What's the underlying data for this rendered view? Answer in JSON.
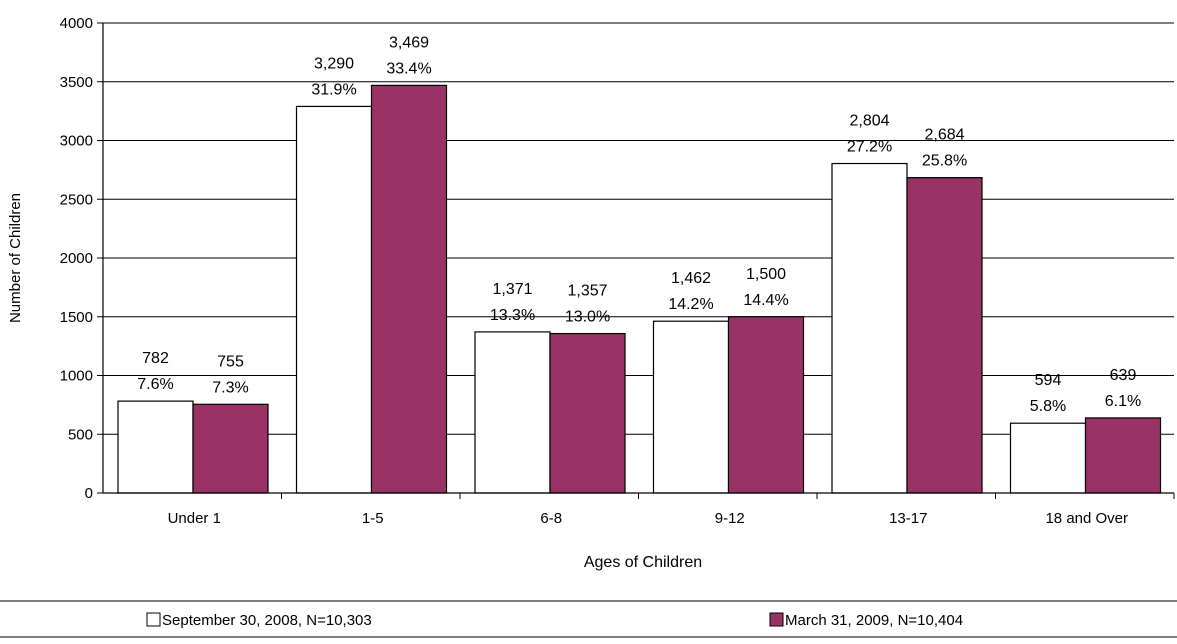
{
  "chart_data": {
    "type": "bar",
    "title": "",
    "xlabel": "Ages of Children",
    "ylabel": "Number of Children",
    "ylim": [
      0,
      4000
    ],
    "yticks": [
      0,
      500,
      1000,
      1500,
      2000,
      2500,
      3000,
      3500,
      4000
    ],
    "ytick_labels": [
      "0",
      "500",
      "1000",
      "1500",
      "2000",
      "2500",
      "3000",
      "3500",
      "4000"
    ],
    "grid": true,
    "legend_position": "bottom",
    "categories": [
      "Under 1",
      "1-5",
      "6-8",
      "9-12",
      "13-17",
      "18 and Over"
    ],
    "series": [
      {
        "name": "September 30, 2008, N=10,303",
        "color": "#ffffff",
        "values": [
          782,
          3290,
          1371,
          1462,
          2804,
          594
        ],
        "value_labels": [
          "782",
          "3,290",
          "1,371",
          "1,462",
          "2,804",
          "594"
        ],
        "percent_labels": [
          "7.6%",
          "31.9%",
          "13.3%",
          "14.2%",
          "27.2%",
          "5.8%"
        ]
      },
      {
        "name": "March 31, 2009, N=10,404",
        "color": "#993366",
        "values": [
          755,
          3469,
          1357,
          1500,
          2684,
          639
        ],
        "value_labels": [
          "755",
          "3,469",
          "1,357",
          "1,500",
          "2,684",
          "639"
        ],
        "percent_labels": [
          "7.3%",
          "33.4%",
          "13.0%",
          "14.4%",
          "25.8%",
          "6.1%"
        ]
      }
    ]
  }
}
